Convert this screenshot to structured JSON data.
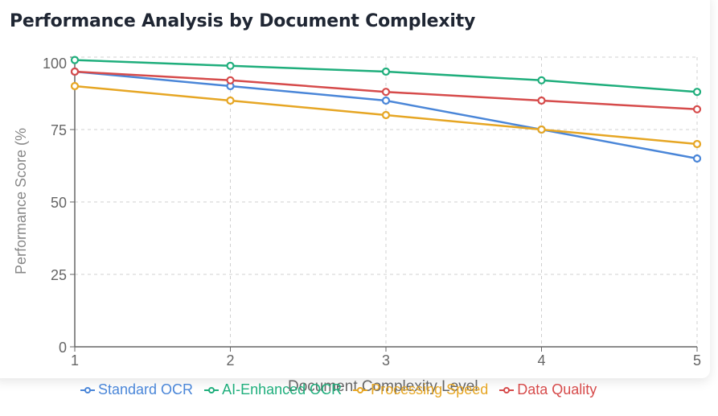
{
  "title": "Performance Analysis by Document Complexity",
  "chart_data": {
    "type": "line",
    "title": "Performance Analysis by Document Complexity",
    "xlabel": "Document Complexity Level",
    "ylabel": "Performance Score (%)",
    "x": [
      1,
      2,
      3,
      4,
      5
    ],
    "ylim": [
      0,
      100
    ],
    "yticks": [
      0,
      25,
      50,
      75,
      100
    ],
    "xticks": [
      1,
      2,
      3,
      4,
      5
    ],
    "grid": true,
    "legend_position": "bottom",
    "series": [
      {
        "name": "Standard OCR",
        "color": "#4a86d8",
        "values": [
          95,
          90,
          85,
          75,
          65
        ]
      },
      {
        "name": "AI-Enhanced OCR",
        "color": "#1fae7c",
        "values": [
          99,
          97,
          95,
          92,
          88
        ]
      },
      {
        "name": "Processing Speed",
        "color": "#e6a624",
        "values": [
          90,
          85,
          80,
          75,
          70
        ]
      },
      {
        "name": "Data Quality",
        "color": "#d64b4b",
        "values": [
          95,
          92,
          88,
          85,
          82
        ]
      }
    ]
  }
}
